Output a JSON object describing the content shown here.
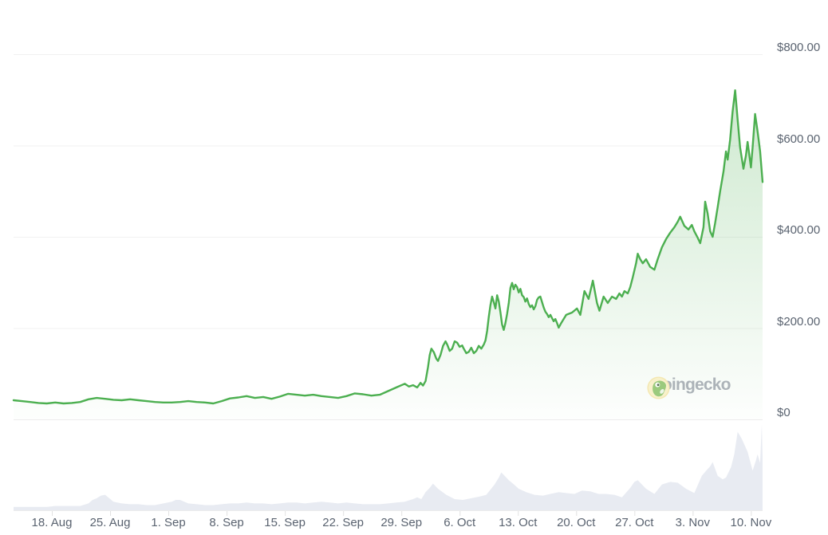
{
  "watermark": {
    "brand_text": "coingecko"
  },
  "colors": {
    "line_green": "#4CAF50",
    "area_green_top": "rgba(76,175,80,0.30)",
    "area_green_bottom": "rgba(76,175,80,0.01)",
    "volume_fill": "#E8EBF2",
    "gridline": "#F1F1F1",
    "zero_line": "#ECECEC",
    "tick_mark": "#E2E2E2",
    "axis_text": "#5A6370",
    "watermark_text": "#9AA1A9"
  },
  "chart_data": {
    "type": "area",
    "title": "",
    "currency": "USD",
    "legend": "none",
    "grid": "horizontal-only",
    "y_axis": {
      "side": "right",
      "min": 0,
      "max": 800,
      "ticks": [
        {
          "label": "$800.00",
          "value": 800
        },
        {
          "label": "$600.00",
          "value": 600
        },
        {
          "label": "$400.00",
          "value": 400
        },
        {
          "label": "$200.00",
          "value": 200
        },
        {
          "label": "$0",
          "value": 0
        }
      ]
    },
    "x_axis": {
      "unit": "days (offset from chart start)",
      "min": 0,
      "max": 90,
      "ticks": [
        {
          "label": "18. Aug",
          "d": 4.6
        },
        {
          "label": "25. Aug",
          "d": 11.6
        },
        {
          "label": "1. Sep",
          "d": 18.6
        },
        {
          "label": "8. Sep",
          "d": 25.6
        },
        {
          "label": "15. Sep",
          "d": 32.6
        },
        {
          "label": "22. Sep",
          "d": 39.6
        },
        {
          "label": "29. Sep",
          "d": 46.6
        },
        {
          "label": "6. Oct",
          "d": 53.6
        },
        {
          "label": "13. Oct",
          "d": 60.6
        },
        {
          "label": "20. Oct",
          "d": 67.6
        },
        {
          "label": "27. Oct",
          "d": 74.6
        },
        {
          "label": "3. Nov",
          "d": 81.6
        },
        {
          "label": "10. Nov",
          "d": 88.6
        }
      ]
    },
    "price_series": {
      "name": "Price (USD)",
      "points": [
        [
          0,
          42
        ],
        [
          1,
          40
        ],
        [
          2,
          38
        ],
        [
          3,
          36
        ],
        [
          4,
          35
        ],
        [
          5,
          37
        ],
        [
          6,
          35
        ],
        [
          7,
          36
        ],
        [
          8,
          38
        ],
        [
          9,
          44
        ],
        [
          10,
          47
        ],
        [
          11,
          45
        ],
        [
          12,
          43
        ],
        [
          13,
          42
        ],
        [
          14,
          44
        ],
        [
          15,
          42
        ],
        [
          16,
          40
        ],
        [
          17,
          38
        ],
        [
          18,
          37
        ],
        [
          19,
          37
        ],
        [
          20,
          38
        ],
        [
          21,
          40
        ],
        [
          22,
          38
        ],
        [
          23,
          37
        ],
        [
          24,
          35
        ],
        [
          25,
          40
        ],
        [
          26,
          46
        ],
        [
          27,
          48
        ],
        [
          28,
          51
        ],
        [
          29,
          47
        ],
        [
          30,
          49
        ],
        [
          31,
          45
        ],
        [
          32,
          50
        ],
        [
          33,
          56
        ],
        [
          34,
          54
        ],
        [
          35,
          52
        ],
        [
          36,
          54
        ],
        [
          37,
          51
        ],
        [
          38,
          49
        ],
        [
          39,
          47
        ],
        [
          40,
          51
        ],
        [
          41,
          57
        ],
        [
          42,
          55
        ],
        [
          43,
          52
        ],
        [
          44,
          54
        ],
        [
          45,
          62
        ],
        [
          46,
          70
        ],
        [
          47,
          78
        ],
        [
          47.5,
          72
        ],
        [
          48,
          75
        ],
        [
          48.5,
          70
        ],
        [
          48.9,
          80
        ],
        [
          49.2,
          74
        ],
        [
          49.5,
          84
        ],
        [
          49.8,
          115
        ],
        [
          50,
          141
        ],
        [
          50.2,
          155
        ],
        [
          50.5,
          147
        ],
        [
          50.8,
          133
        ],
        [
          51,
          128
        ],
        [
          51.3,
          141
        ],
        [
          51.6,
          161
        ],
        [
          51.9,
          171
        ],
        [
          52.1,
          164
        ],
        [
          52.4,
          150
        ],
        [
          52.7,
          155
        ],
        [
          53,
          171
        ],
        [
          53.3,
          168
        ],
        [
          53.6,
          159
        ],
        [
          53.9,
          162
        ],
        [
          54.1,
          155
        ],
        [
          54.4,
          145
        ],
        [
          54.7,
          148
        ],
        [
          55,
          157
        ],
        [
          55.3,
          145
        ],
        [
          55.6,
          150
        ],
        [
          55.9,
          161
        ],
        [
          56.2,
          155
        ],
        [
          56.5,
          164
        ],
        [
          56.7,
          173
        ],
        [
          56.9,
          194
        ],
        [
          57.1,
          224
        ],
        [
          57.3,
          250
        ],
        [
          57.5,
          269
        ],
        [
          57.7,
          257
        ],
        [
          57.9,
          243
        ],
        [
          58.1,
          272
        ],
        [
          58.3,
          258
        ],
        [
          58.5,
          234
        ],
        [
          58.7,
          208
        ],
        [
          58.9,
          196
        ],
        [
          59.1,
          211
        ],
        [
          59.3,
          231
        ],
        [
          59.5,
          255
        ],
        [
          59.7,
          288
        ],
        [
          59.9,
          299
        ],
        [
          60.1,
          285
        ],
        [
          60.3,
          295
        ],
        [
          60.5,
          290
        ],
        [
          60.7,
          278
        ],
        [
          60.9,
          286
        ],
        [
          61.1,
          272
        ],
        [
          61.3,
          268
        ],
        [
          61.5,
          258
        ],
        [
          61.7,
          265
        ],
        [
          61.9,
          253
        ],
        [
          62.1,
          246
        ],
        [
          62.3,
          250
        ],
        [
          62.5,
          241
        ],
        [
          62.7,
          248
        ],
        [
          62.9,
          262
        ],
        [
          63.1,
          267
        ],
        [
          63.3,
          269
        ],
        [
          63.5,
          257
        ],
        [
          63.7,
          245
        ],
        [
          63.9,
          236
        ],
        [
          64.1,
          231
        ],
        [
          64.3,
          224
        ],
        [
          64.5,
          229
        ],
        [
          64.7,
          222
        ],
        [
          64.9,
          215
        ],
        [
          65.1,
          220
        ],
        [
          65.3,
          211
        ],
        [
          65.5,
          201
        ],
        [
          65.8,
          211
        ],
        [
          66.4,
          229
        ],
        [
          67.1,
          234
        ],
        [
          67.7,
          243
        ],
        [
          68.1,
          229
        ],
        [
          68.6,
          281
        ],
        [
          69.1,
          264
        ],
        [
          69.6,
          304
        ],
        [
          70.1,
          255
        ],
        [
          70.4,
          238
        ],
        [
          70.9,
          269
        ],
        [
          71.4,
          255
        ],
        [
          71.9,
          269
        ],
        [
          72.4,
          264
        ],
        [
          72.8,
          276
        ],
        [
          73.1,
          269
        ],
        [
          73.4,
          281
        ],
        [
          73.8,
          276
        ],
        [
          74.1,
          290
        ],
        [
          74.4,
          311
        ],
        [
          74.8,
          342
        ],
        [
          75,
          363
        ],
        [
          75.3,
          351
        ],
        [
          75.6,
          342
        ],
        [
          76,
          351
        ],
        [
          76.5,
          334
        ],
        [
          77,
          328
        ],
        [
          77.4,
          351
        ],
        [
          77.9,
          377
        ],
        [
          78.4,
          395
        ],
        [
          78.9,
          409
        ],
        [
          79.4,
          421
        ],
        [
          79.8,
          433
        ],
        [
          80.1,
          444
        ],
        [
          80.6,
          424
        ],
        [
          81.1,
          416
        ],
        [
          81.5,
          426
        ],
        [
          81.8,
          412
        ],
        [
          82.2,
          398
        ],
        [
          82.5,
          386
        ],
        [
          82.9,
          421
        ],
        [
          83.1,
          477
        ],
        [
          83.4,
          451
        ],
        [
          83.7,
          412
        ],
        [
          84,
          400
        ],
        [
          84.3,
          430
        ],
        [
          84.6,
          465
        ],
        [
          84.9,
          500
        ],
        [
          85.3,
          543
        ],
        [
          85.6,
          587
        ],
        [
          85.8,
          569
        ],
        [
          86.1,
          613
        ],
        [
          86.4,
          674
        ],
        [
          86.7,
          721
        ],
        [
          87,
          657
        ],
        [
          87.3,
          596
        ],
        [
          87.7,
          549
        ],
        [
          88,
          578
        ],
        [
          88.2,
          608
        ],
        [
          88.6,
          552
        ],
        [
          88.8,
          596
        ],
        [
          89.1,
          669
        ],
        [
          89.4,
          631
        ],
        [
          89.7,
          587
        ],
        [
          90,
          520
        ]
      ]
    },
    "volume_series": {
      "name": "Volume",
      "unit": "percent of max",
      "points": [
        [
          0,
          4
        ],
        [
          1,
          4
        ],
        [
          2,
          4
        ],
        [
          3,
          4
        ],
        [
          4,
          4
        ],
        [
          5,
          5
        ],
        [
          6,
          5
        ],
        [
          7,
          5
        ],
        [
          8,
          5
        ],
        [
          9,
          8
        ],
        [
          9.5,
          12
        ],
        [
          10,
          14
        ],
        [
          10.5,
          17
        ],
        [
          11,
          18
        ],
        [
          11.5,
          14
        ],
        [
          12,
          10
        ],
        [
          13,
          8
        ],
        [
          14,
          7
        ],
        [
          15,
          7
        ],
        [
          16,
          6
        ],
        [
          17,
          6
        ],
        [
          18,
          8
        ],
        [
          19,
          10
        ],
        [
          19.5,
          12
        ],
        [
          20,
          12
        ],
        [
          21,
          8
        ],
        [
          22,
          7
        ],
        [
          23,
          6
        ],
        [
          24,
          6
        ],
        [
          25,
          7
        ],
        [
          26,
          8
        ],
        [
          27,
          8
        ],
        [
          28,
          9
        ],
        [
          29,
          8
        ],
        [
          30,
          8
        ],
        [
          31,
          7
        ],
        [
          32,
          8
        ],
        [
          33,
          9
        ],
        [
          34,
          9
        ],
        [
          35,
          8
        ],
        [
          36,
          9
        ],
        [
          37,
          10
        ],
        [
          38,
          9
        ],
        [
          39,
          8
        ],
        [
          40,
          9
        ],
        [
          41,
          8
        ],
        [
          42,
          7
        ],
        [
          43,
          7
        ],
        [
          44,
          7
        ],
        [
          45,
          8
        ],
        [
          46,
          9
        ],
        [
          47,
          10
        ],
        [
          48,
          13
        ],
        [
          48.5,
          15
        ],
        [
          49,
          13
        ],
        [
          49.5,
          21
        ],
        [
          50,
          26
        ],
        [
          50.4,
          31
        ],
        [
          51,
          25
        ],
        [
          52,
          18
        ],
        [
          53,
          13
        ],
        [
          54,
          12
        ],
        [
          55,
          14
        ],
        [
          56,
          16
        ],
        [
          56.8,
          18
        ],
        [
          57.8,
          30
        ],
        [
          58.3,
          38
        ],
        [
          58.6,
          44
        ],
        [
          59,
          40
        ],
        [
          59.5,
          35
        ],
        [
          60,
          31
        ],
        [
          60.7,
          25
        ],
        [
          61.6,
          21
        ],
        [
          62.6,
          18
        ],
        [
          63.6,
          17
        ],
        [
          64.5,
          19
        ],
        [
          65.5,
          21
        ],
        [
          66.4,
          20
        ],
        [
          67.4,
          19
        ],
        [
          68.3,
          23
        ],
        [
          69.3,
          22
        ],
        [
          70.3,
          19
        ],
        [
          71.2,
          19
        ],
        [
          72.2,
          18
        ],
        [
          73.1,
          15
        ],
        [
          74.1,
          26
        ],
        [
          74.6,
          33
        ],
        [
          75,
          35
        ],
        [
          75.5,
          30
        ],
        [
          76,
          25
        ],
        [
          77,
          19
        ],
        [
          77.9,
          30
        ],
        [
          78.9,
          33
        ],
        [
          79.8,
          32
        ],
        [
          80.8,
          25
        ],
        [
          81.8,
          20
        ],
        [
          82.7,
          40
        ],
        [
          83.4,
          48
        ],
        [
          83.7,
          51
        ],
        [
          84,
          56
        ],
        [
          84.6,
          40
        ],
        [
          85.2,
          36
        ],
        [
          85.6,
          38
        ],
        [
          86.2,
          50
        ],
        [
          86.6,
          65
        ],
        [
          87,
          91
        ],
        [
          87.2,
          88
        ],
        [
          87.5,
          83
        ],
        [
          88.2,
          68
        ],
        [
          88.8,
          46
        ],
        [
          89.2,
          58
        ],
        [
          89.4,
          65
        ],
        [
          89.7,
          55
        ],
        [
          89.9,
          100
        ],
        [
          90,
          60
        ]
      ]
    }
  }
}
